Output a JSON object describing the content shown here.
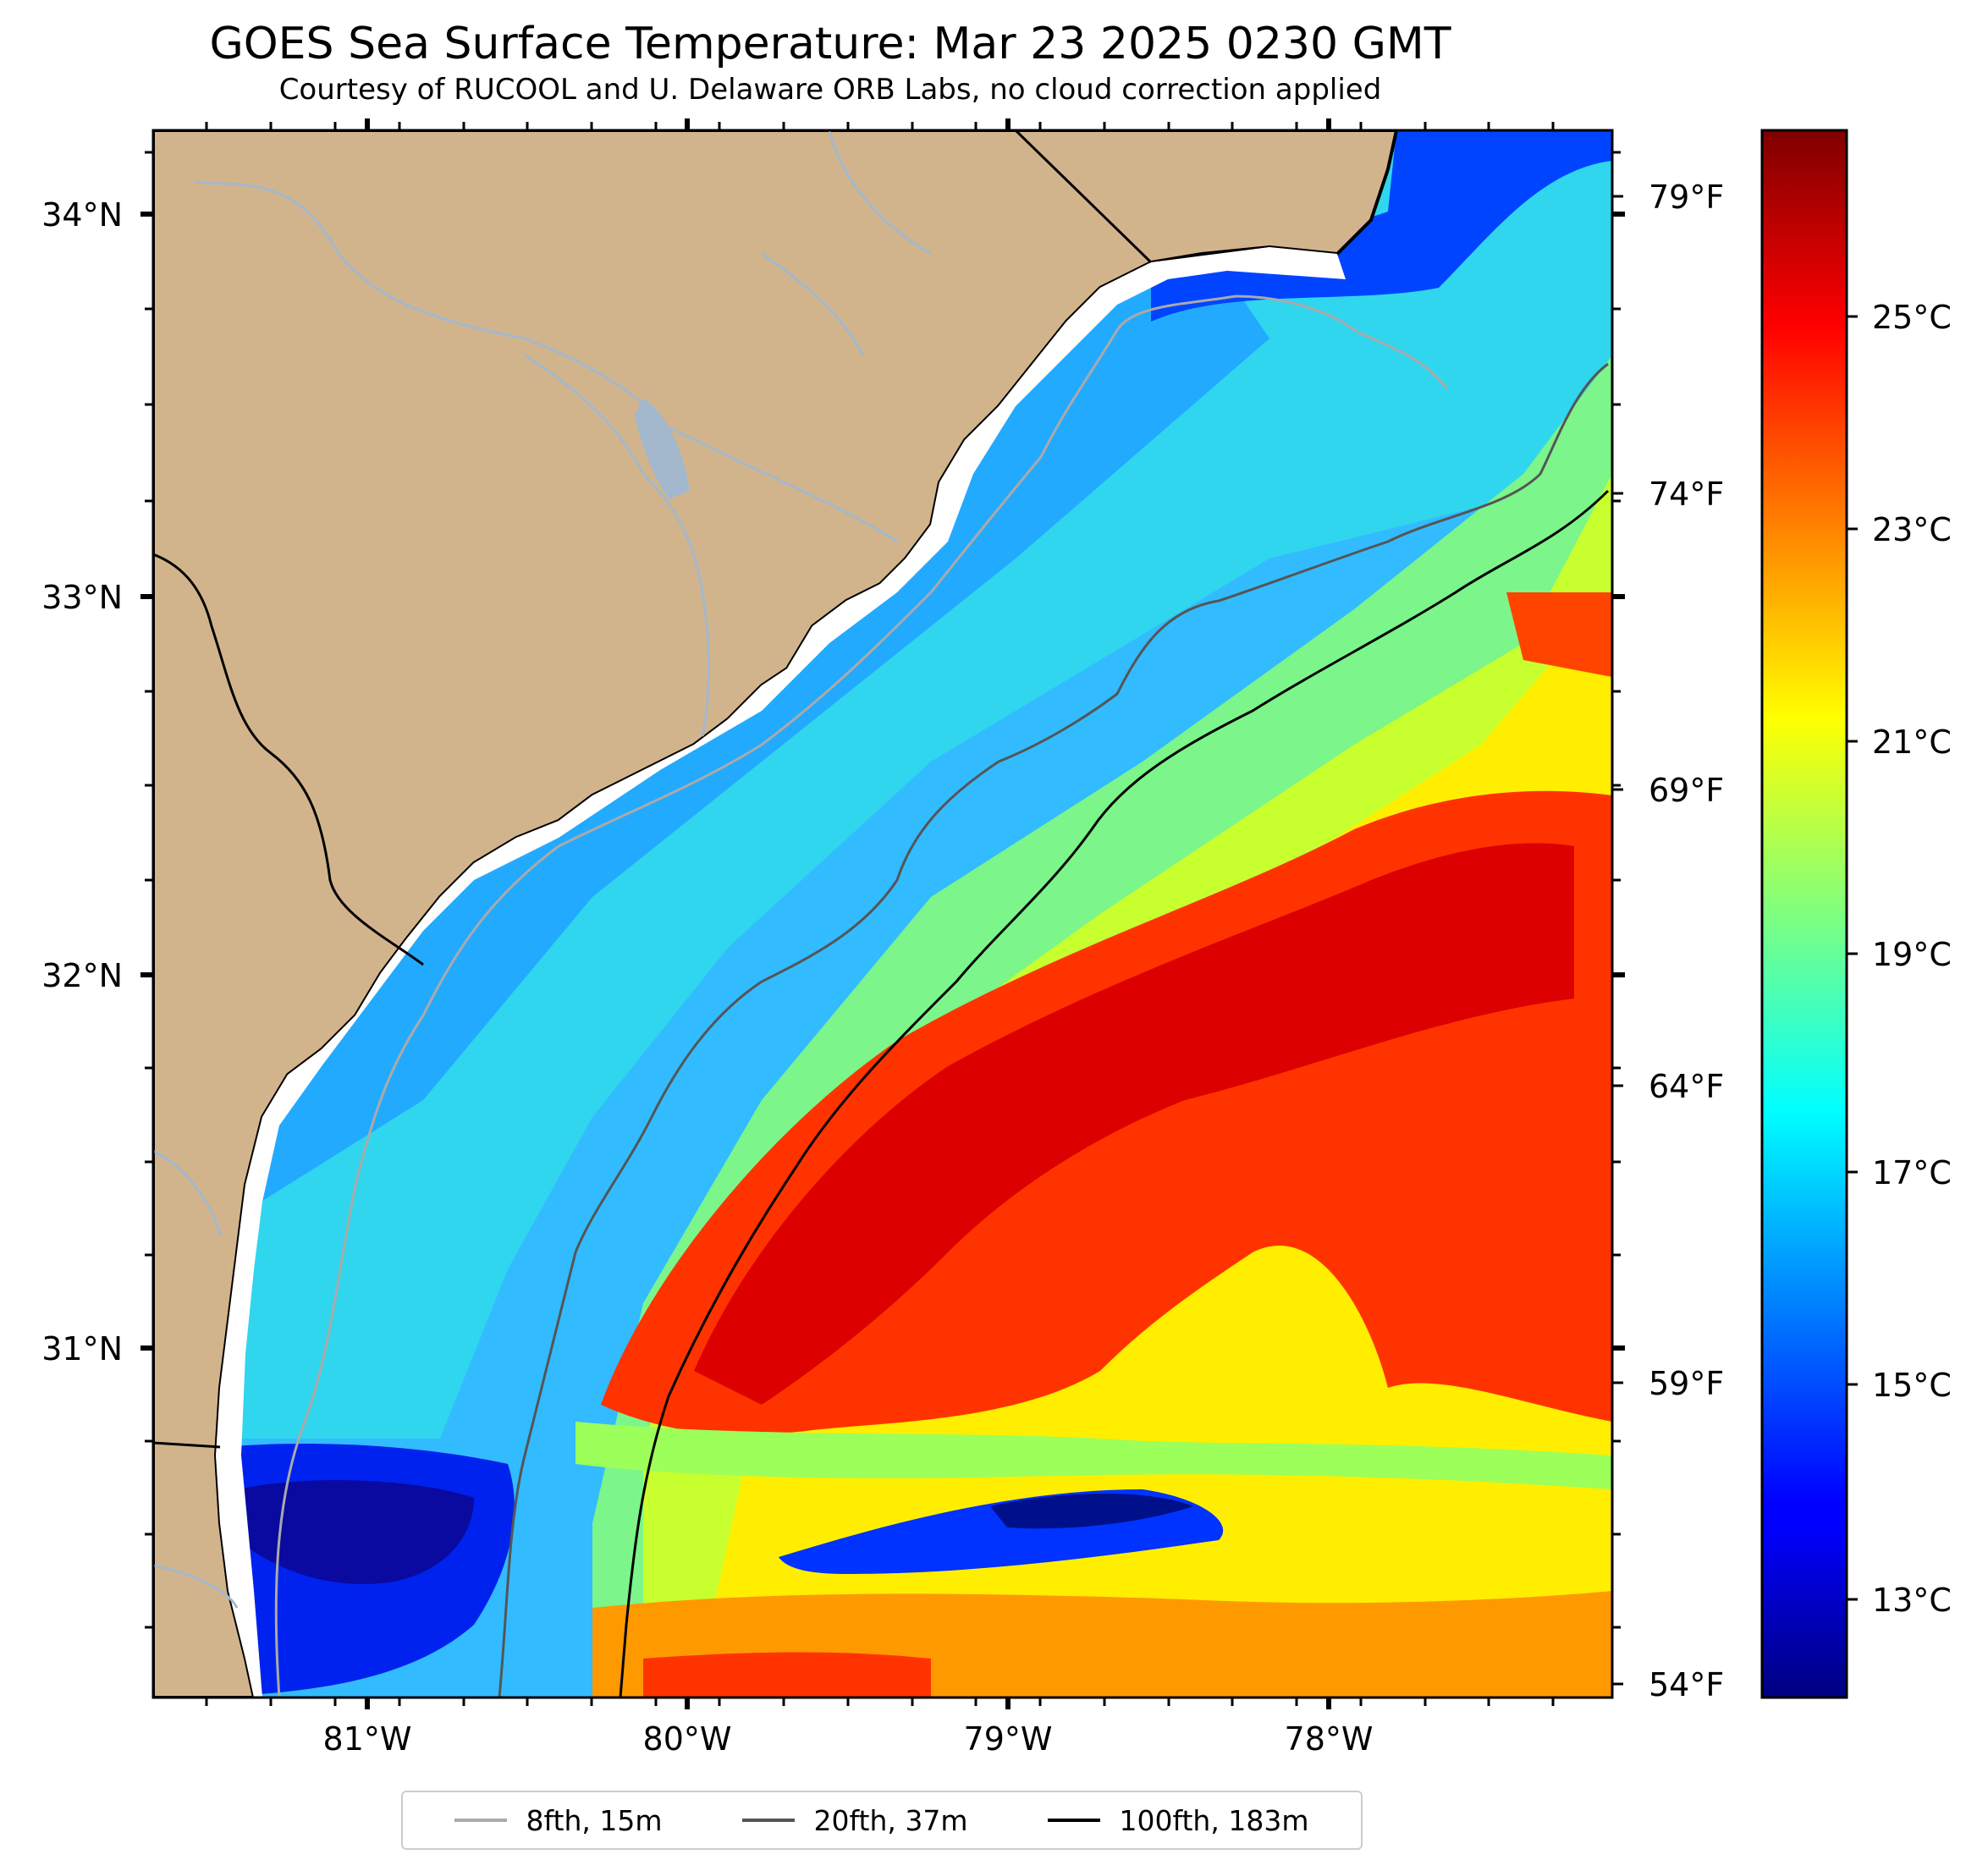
{
  "title": "GOES Sea Surface Temperature: Mar 23 2025 0230 GMT",
  "subtitle": "Courtesy of RUCOOL and U. Delaware ORB Labs, no cloud correction applied",
  "map": {
    "lat_labels": [
      "34°N",
      "33°N",
      "32°N",
      "31°N"
    ],
    "lon_labels": [
      "81°W",
      "80°W",
      "79°W",
      "78°W"
    ],
    "fahrenheit_labels": [
      "79°F",
      "74°F",
      "69°F",
      "64°F",
      "59°F",
      "54°F"
    ],
    "land_color": "#d2b48c",
    "coast_color": "#000000",
    "river_color": "#a3b8cc"
  },
  "colorbar": {
    "labels": [
      "25°C",
      "23°C",
      "21°C",
      "19°C",
      "17°C",
      "15°C",
      "13°C"
    ],
    "colormap": "jet"
  },
  "legend": {
    "items": [
      {
        "label": "8fth, 15m",
        "color": "#aaaaaa"
      },
      {
        "label": "20fth, 37m",
        "color": "#555555"
      },
      {
        "label": "100fth, 183m",
        "color": "#000000"
      }
    ]
  }
}
